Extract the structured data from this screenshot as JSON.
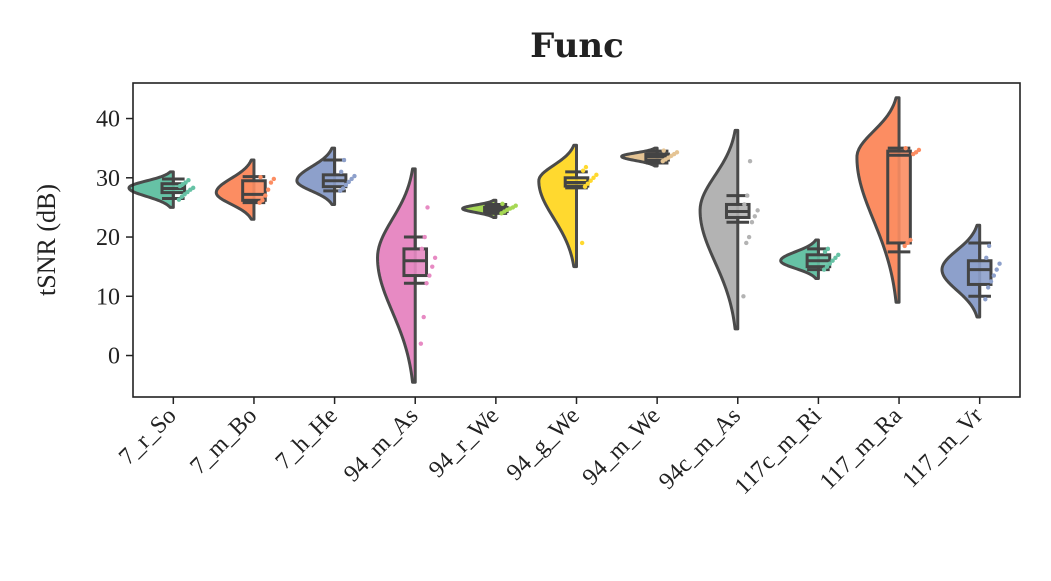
{
  "chart_data": {
    "type": "raincloud",
    "title": "Func",
    "ylabel": "tSNR (dB)",
    "xlabel": "",
    "ylim": [
      -7,
      46
    ],
    "yticks": [
      0,
      10,
      20,
      30,
      40
    ],
    "grid": false,
    "categories": [
      "7_r_So",
      "7_m_Bo",
      "7_h_He",
      "94_m_As",
      "94_r_We",
      "94_g_We",
      "94_m_We",
      "94c_m_As",
      "117c_m_Ri",
      "117_m_Ra",
      "117_m_Vr"
    ],
    "colors": [
      "#66c2a5",
      "#fc8d62",
      "#8da0cb",
      "#e78ac3",
      "#a6d854",
      "#ffd92f",
      "#e5c494",
      "#b3b3b3",
      "#66c2a5",
      "#fc8d62",
      "#8da0cb"
    ],
    "groups": [
      {
        "name": "7_r_So",
        "box": {
          "whislo": 26.5,
          "q1": 27.5,
          "med": 28.2,
          "q3": 29.0,
          "whishi": 29.8
        },
        "violin": {
          "min": 25.0,
          "max": 31.0,
          "peak": 28.3,
          "width": 1.0
        },
        "points": [
          26.3,
          26.8,
          27.2,
          27.6,
          28.0,
          28.3,
          28.6,
          28.9,
          29.2,
          29.6
        ]
      },
      {
        "name": "7_m_Bo",
        "box": {
          "whislo": 25.8,
          "q1": 26.2,
          "med": 27.2,
          "q3": 29.5,
          "whishi": 30.2
        },
        "violin": {
          "min": 23.0,
          "max": 33.0,
          "peak": 27.5,
          "width": 0.85
        },
        "points": [
          25.8,
          26.2,
          27.0,
          28.0,
          29.2,
          29.8,
          30.1
        ]
      },
      {
        "name": "7_h_He",
        "box": {
          "whislo": 27.8,
          "q1": 28.5,
          "med": 29.5,
          "q3": 30.5,
          "whishi": 33.0
        },
        "violin": {
          "min": 25.5,
          "max": 35.0,
          "peak": 29.5,
          "width": 0.85
        },
        "points": [
          27.8,
          28.2,
          28.8,
          29.3,
          29.8,
          30.3,
          31.0,
          33.0
        ]
      },
      {
        "name": "94_m_As",
        "box": {
          "whislo": 12.2,
          "q1": 13.5,
          "med": 16.0,
          "q3": 18.0,
          "whishi": 20.0
        },
        "violin": {
          "min": -4.5,
          "max": 31.5,
          "peak": 16.5,
          "width": 0.85
        },
        "points": [
          2.0,
          6.5,
          12.2,
          13.5,
          15.0,
          16.5,
          18.0,
          20.0,
          25.0
        ]
      },
      {
        "name": "94_r_We",
        "box": {
          "whislo": 24.0,
          "q1": 24.3,
          "med": 24.7,
          "q3": 25.0,
          "whishi": 25.5
        },
        "violin": {
          "min": 23.3,
          "max": 26.2,
          "peak": 24.8,
          "width": 0.75
        },
        "points": [
          24.0,
          24.3,
          24.6,
          24.8,
          25.0,
          25.3,
          25.6
        ]
      },
      {
        "name": "94_g_We",
        "box": {
          "whislo": 28.3,
          "q1": 28.6,
          "med": 29.2,
          "q3": 30.0,
          "whishi": 31.0
        },
        "violin": {
          "min": 15.0,
          "max": 35.5,
          "peak": 29.5,
          "width": 0.85
        },
        "points": [
          19.0,
          28.5,
          29.0,
          29.5,
          30.0,
          30.5,
          31.2,
          31.8
        ]
      },
      {
        "name": "94_m_We",
        "box": {
          "whislo": 32.5,
          "q1": 33.0,
          "med": 33.6,
          "q3": 34.0,
          "whishi": 34.5
        },
        "violin": {
          "min": 32.0,
          "max": 35.0,
          "peak": 33.6,
          "width": 0.8
        },
        "points": [
          32.8,
          33.1,
          33.4,
          33.7,
          34.0,
          34.3,
          34.6
        ]
      },
      {
        "name": "94c_m_As",
        "box": {
          "whislo": 22.5,
          "q1": 23.3,
          "med": 24.3,
          "q3": 25.5,
          "whishi": 27.0
        },
        "violin": {
          "min": 4.5,
          "max": 38.0,
          "peak": 24.5,
          "width": 0.85
        },
        "points": [
          10.0,
          19.0,
          20.0,
          22.5,
          23.5,
          24.5,
          25.5,
          27.0,
          32.8
        ]
      },
      {
        "name": "117c_m_Ri",
        "box": {
          "whislo": 14.5,
          "q1": 15.0,
          "med": 16.0,
          "q3": 17.0,
          "whishi": 18.0
        },
        "violin": {
          "min": 13.0,
          "max": 19.5,
          "peak": 16.0,
          "width": 0.85
        },
        "points": [
          14.5,
          15.0,
          15.5,
          16.0,
          16.5,
          17.0,
          17.5,
          18.0
        ]
      },
      {
        "name": "117_m_Ra",
        "box": {
          "whislo": 17.5,
          "q1": 19.0,
          "med": 33.8,
          "q3": 34.5,
          "whishi": 35.0
        },
        "violin": {
          "min": 9.0,
          "max": 43.5,
          "peak": 33.5,
          "width": 0.95
        },
        "points": [
          18.5,
          19.0,
          19.5,
          34.0,
          34.3,
          34.7,
          35.0
        ]
      },
      {
        "name": "117_m_Vr",
        "box": {
          "whislo": 10.0,
          "q1": 12.0,
          "med": 14.5,
          "q3": 16.0,
          "whishi": 19.0
        },
        "violin": {
          "min": 6.5,
          "max": 22.0,
          "peak": 14.5,
          "width": 0.85
        },
        "points": [
          9.5,
          11.5,
          12.5,
          13.5,
          14.5,
          15.5,
          16.5,
          18.5
        ]
      }
    ]
  }
}
